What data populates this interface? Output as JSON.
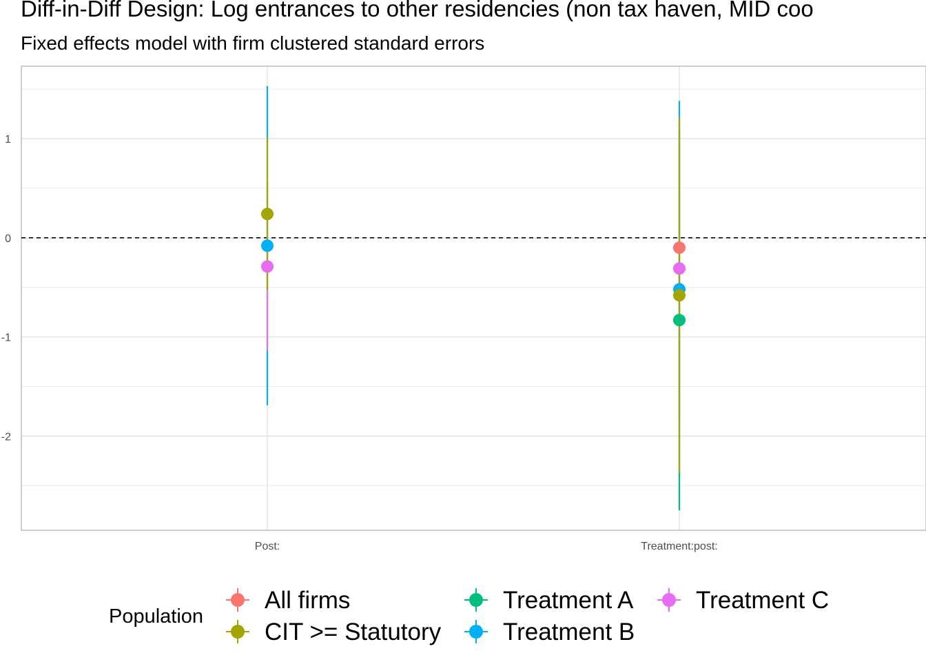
{
  "title": "Diff-in-Diff Design: Log entrances to other residencies (non tax haven, MID coo",
  "subtitle": "Fixed effects model with firm clustered standard errors",
  "chart_data": {
    "type": "scatter",
    "title": "Diff-in-Diff Design: Log entrances to other residencies (non tax haven, MID coo",
    "subtitle": "Fixed effects model with firm clustered standard errors",
    "xlabel": "",
    "ylabel": "",
    "categories": [
      "Post:",
      "Treatment:post:"
    ],
    "ylim": [
      -2.95,
      1.73
    ],
    "yticks": [
      -2,
      -1,
      0,
      1
    ],
    "reference_line": 0,
    "grid": true,
    "legend": {
      "title": "Population",
      "position": "bottom"
    },
    "series": [
      {
        "name": "All firms",
        "color": "#F8766D",
        "estimates": [
          null,
          -0.1
        ],
        "ci": [
          null,
          null
        ]
      },
      {
        "name": "CIT >= Statutory",
        "color": "#A3A500",
        "estimates": [
          0.24,
          -0.58
        ],
        "ci": [
          [
            -0.53,
            1.01
          ],
          [
            -2.37,
            1.21
          ]
        ]
      },
      {
        "name": "Treatment A",
        "color": "#00BF7D",
        "estimates": [
          null,
          -0.83
        ],
        "ci": [
          null,
          [
            -2.75,
            1.09
          ]
        ]
      },
      {
        "name": "Treatment B",
        "color": "#00B0F6",
        "estimates": [
          -0.08,
          -0.52
        ],
        "ci": [
          [
            -1.69,
            1.53
          ],
          [
            -2.42,
            1.38
          ]
        ]
      },
      {
        "name": "Treatment C",
        "color": "#E76BF3",
        "estimates": [
          -0.29,
          -0.31
        ],
        "ci": [
          [
            -1.14,
            0.56
          ],
          [
            -1.83,
            1.21
          ]
        ]
      }
    ],
    "draw_order": [
      3,
      4,
      2,
      0,
      1
    ]
  }
}
